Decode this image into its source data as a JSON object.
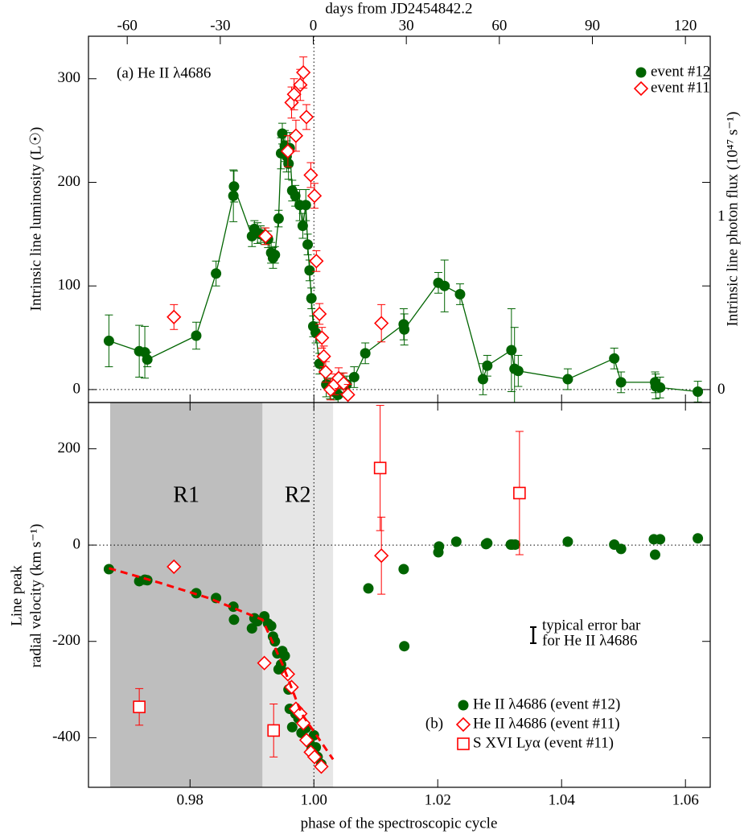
{
  "chart_data": [
    {
      "type": "scatter",
      "annotation": "(a) He II λ4686",
      "x2label": "days from JD2454842.2",
      "ylabel": "Intrinsic line luminosity (L☉)",
      "y2label": "Intrinsic line photon flux  (10⁴⁷ s⁻¹)",
      "xlim": [
        0.9636,
        1.064
      ],
      "x2lim": [
        -72.5,
        128
      ],
      "x2ticks": [
        -60,
        -30,
        0,
        30,
        60,
        90,
        120
      ],
      "ylim": [
        -12.5,
        341
      ],
      "yticks": [
        0,
        100,
        200,
        300
      ],
      "y2lim": [
        -0.071,
        2.045
      ],
      "y2ticks": [
        0,
        1
      ],
      "legend": "upper right",
      "series": [
        {
          "name": "event #12",
          "color": "#006400",
          "marker": "circle",
          "line": true,
          "x": [
            0.9669,
            0.9718,
            0.9727,
            0.9731,
            0.981,
            0.9842,
            0.987,
            0.9871,
            0.99,
            0.9904,
            0.9909,
            0.9914,
            0.992,
            0.9926,
            0.9931,
            0.9934,
            0.9937,
            0.9943,
            0.9947,
            0.9949,
            0.9953,
            0.9956,
            0.9959,
            0.9961,
            0.9965,
            0.997,
            0.9977,
            0.9982,
            0.9987,
            0.999,
            0.9993,
            0.9996,
            0.9999,
            1.0003,
            1.0009,
            1.002,
            1.0026,
            1.0032,
            1.0039,
            1.0046,
            1.0053,
            1.0065,
            1.0083,
            1.0145,
            1.0146,
            1.0201,
            1.0211,
            1.0236,
            1.0273,
            1.028,
            1.0319,
            1.0324,
            1.033,
            1.041,
            1.0485,
            1.0496,
            1.0551,
            1.0552,
            1.0559,
            1.062
          ],
          "values": [
            47,
            37,
            36,
            29,
            52,
            112,
            187,
            196,
            148,
            155,
            151,
            150,
            148,
            145,
            132,
            127,
            130,
            165,
            228,
            247,
            235,
            225,
            218,
            233,
            192,
            187,
            178,
            158,
            178,
            140,
            115,
            88,
            61,
            55,
            25,
            5,
            1,
            -2,
            -5,
            8,
            5,
            12,
            35,
            63,
            58,
            103,
            100,
            92,
            10,
            23,
            38,
            20,
            18,
            10,
            30,
            7,
            7,
            3,
            2,
            -2
          ],
          "errors": [
            25,
            25,
            25,
            7,
            13,
            12,
            25,
            15,
            10,
            8,
            10,
            8,
            8,
            8,
            10,
            10,
            8,
            8,
            15,
            10,
            15,
            15,
            15,
            15,
            10,
            10,
            15,
            12,
            15,
            10,
            10,
            10,
            10,
            10,
            10,
            12,
            10,
            8,
            8,
            8,
            8,
            10,
            10,
            15,
            15,
            10,
            25,
            10,
            15,
            10,
            40,
            40,
            15,
            10,
            10,
            10,
            10,
            12,
            10,
            10
          ]
        },
        {
          "name": "event #11",
          "color": "#ff0000",
          "marker": "diamond",
          "line": false,
          "x": [
            0.9774,
            0.9922,
            0.9958,
            0.9964,
            0.9968,
            0.9971,
            0.9978,
            0.9983,
            0.9988,
            0.9995,
            1.0001,
            1.0004,
            1.0009,
            1.0013,
            1.0016,
            1.0019,
            1.0027,
            1.0034,
            1.004,
            1.0048,
            1.0055,
            1.0109
          ],
          "values": [
            70,
            148,
            230,
            277,
            285,
            245,
            294,
            306,
            263,
            207,
            187,
            124,
            73,
            50,
            32,
            17,
            0,
            5,
            11,
            6,
            -5,
            64
          ],
          "errors": [
            12,
            8,
            15,
            15,
            15,
            15,
            15,
            15,
            12,
            12,
            12,
            10,
            10,
            10,
            10,
            10,
            10,
            10,
            10,
            10,
            10,
            18
          ]
        }
      ]
    },
    {
      "type": "scatter",
      "annotation": "(b)",
      "xlabel": "phase of the spectroscopic cycle",
      "ylabel": [
        "Line peak",
        "radial velocity (km s⁻¹)"
      ],
      "xlim": [
        0.9636,
        1.064
      ],
      "xticks": [
        0.98,
        {
          "value": 1,
          "label": "1.00"
        },
        1.02,
        1.04,
        1.06
      ],
      "ylim": [
        -503,
        296
      ],
      "yticks": [
        -400,
        -200,
        0,
        200
      ],
      "regions": [
        {
          "label": "R1",
          "x": [
            0.9671,
            0.9917
          ],
          "color": "#bebebe"
        },
        {
          "label": "R2",
          "x": [
            0.9917,
            1.0031
          ],
          "color": "#e6e6e6"
        }
      ],
      "error_note": [
        "typical error bar",
        "for He II λ4686"
      ],
      "legend": "lower right",
      "series": [
        {
          "name": "He II λ4686 (event #12)",
          "color": "#006400",
          "marker": "circle",
          "x": [
            0.9669,
            0.9718,
            0.9727,
            0.9731,
            0.981,
            0.9842,
            0.987,
            0.9871,
            0.99,
            0.9904,
            0.9909,
            0.992,
            0.9926,
            0.9931,
            0.9934,
            0.9937,
            0.9941,
            0.9943,
            0.9947,
            0.9949,
            0.9953,
            0.9956,
            0.9959,
            0.9961,
            0.9965,
            0.997,
            0.9975,
            0.998,
            0.9987,
            0.9993,
            0.9996,
            1.0,
            1.0003,
            1.0006,
            1.0012,
            1.0088,
            1.0145,
            1.0146,
            1.0201,
            1.0202,
            1.023,
            1.0278,
            1.028,
            1.0318,
            1.032,
            1.0325,
            1.041,
            1.0485,
            1.0496,
            1.0549,
            1.0551,
            1.0559,
            1.062
          ],
          "values": [
            -50,
            -75,
            -72,
            -73,
            -100,
            -110,
            -128,
            -155,
            -173,
            -152,
            -158,
            -148,
            -163,
            -168,
            -190,
            -200,
            -225,
            -258,
            -248,
            -220,
            -230,
            -265,
            -300,
            -340,
            -378,
            -350,
            -360,
            -390,
            -380,
            -410,
            -425,
            -395,
            -420,
            -440,
            -455,
            -90,
            -50,
            -210,
            -15,
            -3,
            7,
            2,
            4,
            1,
            1,
            1,
            7,
            1,
            -8,
            12,
            -20,
            12,
            14
          ]
        },
        {
          "name": "He II λ4686 (event #11)",
          "color": "#ff0000",
          "marker": "diamond",
          "x": [
            0.9774,
            0.992,
            0.9958,
            0.9964,
            0.9971,
            0.9978,
            0.9983,
            0.9988,
            0.9995,
            1.0001,
            1.0012,
            1.0109
          ],
          "values": [
            -45,
            -245,
            -268,
            -295,
            -340,
            -350,
            -370,
            -405,
            -430,
            -440,
            -460,
            -22
          ],
          "errors": [
            null,
            null,
            null,
            null,
            null,
            null,
            null,
            null,
            null,
            null,
            null,
            80
          ]
        },
        {
          "name": "S XVI Lyα (event #11)",
          "color": "#ff0000",
          "marker": "square",
          "x": [
            0.9718,
            0.9935,
            1.0107,
            1.0332
          ],
          "values": [
            -336,
            -385,
            160,
            108
          ],
          "errors": [
            38,
            55,
            130,
            128
          ]
        },
        {
          "color": "#ff0000",
          "marker": "none",
          "line": "dashed",
          "x": [
            0.9669,
            0.975,
            0.983,
            0.9917,
            0.995,
            0.998,
            1.0031
          ],
          "values": [
            -48,
            -78,
            -110,
            -155,
            -250,
            -350,
            -445
          ]
        }
      ]
    }
  ]
}
